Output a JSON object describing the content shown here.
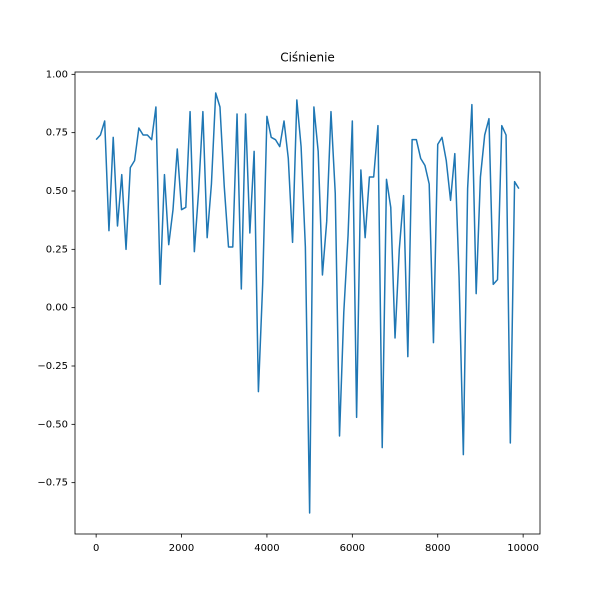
{
  "chart_data": {
    "type": "line",
    "title": "Ciśnienie",
    "x": [
      0,
      100,
      200,
      300,
      400,
      500,
      600,
      700,
      800,
      900,
      1000,
      1100,
      1200,
      1300,
      1400,
      1500,
      1600,
      1700,
      1800,
      1900,
      2000,
      2100,
      2200,
      2300,
      2400,
      2500,
      2600,
      2700,
      2800,
      2900,
      3000,
      3100,
      3200,
      3300,
      3400,
      3500,
      3600,
      3700,
      3800,
      3900,
      4000,
      4100,
      4200,
      4300,
      4400,
      4500,
      4600,
      4700,
      4800,
      4900,
      5000,
      5100,
      5200,
      5300,
      5400,
      5500,
      5600,
      5700,
      5800,
      5900,
      6000,
      6100,
      6200,
      6300,
      6400,
      6500,
      6600,
      6700,
      6800,
      6900,
      7000,
      7100,
      7200,
      7300,
      7400,
      7500,
      7600,
      7700,
      7800,
      7900,
      8000,
      8100,
      8200,
      8300,
      8400,
      8500,
      8600,
      8700,
      8800,
      8900,
      9000,
      9100,
      9200,
      9300,
      9400,
      9500,
      9600,
      9700,
      9800,
      9900
    ],
    "series": [
      {
        "color": "#1f77b4",
        "values": [
          0.72,
          0.74,
          0.8,
          0.33,
          0.73,
          0.35,
          0.57,
          0.25,
          0.6,
          0.63,
          0.77,
          0.74,
          0.74,
          0.72,
          0.86,
          0.1,
          0.57,
          0.27,
          0.42,
          0.68,
          0.42,
          0.43,
          0.84,
          0.24,
          0.5,
          0.84,
          0.3,
          0.53,
          0.92,
          0.86,
          0.52,
          0.26,
          0.26,
          0.83,
          0.08,
          0.83,
          0.32,
          0.67,
          -0.36,
          0.1,
          0.82,
          0.73,
          0.72,
          0.69,
          0.8,
          0.64,
          0.28,
          0.89,
          0.69,
          0.26,
          -0.88,
          0.86,
          0.67,
          0.14,
          0.37,
          0.84,
          0.49,
          -0.55,
          -0.02,
          0.31,
          0.8,
          -0.47,
          0.59,
          0.3,
          0.56,
          0.56,
          0.78,
          -0.6,
          0.55,
          0.43,
          -0.13,
          0.25,
          0.48,
          -0.21,
          0.72,
          0.72,
          0.64,
          0.61,
          0.53,
          -0.15,
          0.7,
          0.73,
          0.63,
          0.46,
          0.66,
          0.13,
          -0.63,
          0.51,
          0.87,
          0.06,
          0.56,
          0.74,
          0.81,
          0.1,
          0.12,
          0.78,
          0.74,
          -0.58,
          0.54,
          0.51
        ]
      }
    ],
    "xlim": [
      -495,
      10395
    ],
    "ylim": [
      -0.97,
      1.01
    ],
    "xticks": [
      0,
      2000,
      4000,
      6000,
      8000,
      10000
    ],
    "yticks": [
      {
        "value": -0.75,
        "label": "−0.75"
      },
      {
        "value": -0.5,
        "label": "−0.50"
      },
      {
        "value": -0.25,
        "label": "−0.25"
      },
      {
        "value": 0,
        "label": "0.00"
      },
      {
        "value": 0.25,
        "label": "0.25"
      },
      {
        "value": 0.5,
        "label": "0.50"
      },
      {
        "value": 0.75,
        "label": "0.75"
      },
      {
        "value": 1,
        "label": "1.00"
      }
    ]
  }
}
